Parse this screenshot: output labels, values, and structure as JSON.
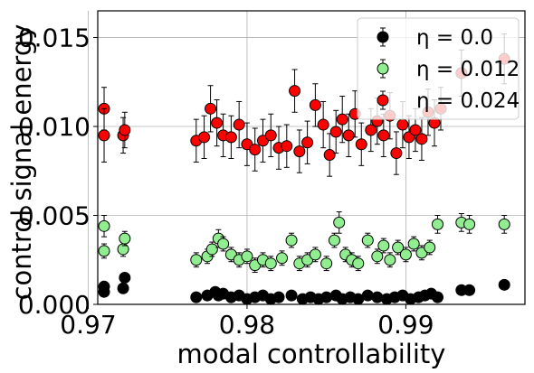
{
  "chart_data": {
    "type": "scatter",
    "title": "",
    "xlabel": "modal controllability",
    "ylabel": "control signal energy",
    "xlim": [
      0.9706,
      0.9975
    ],
    "ylim": [
      0.0,
      0.0165
    ],
    "xticks": [
      "0.97",
      "0.98",
      "0.99"
    ],
    "xtick_values": [
      0.97,
      0.98,
      0.99
    ],
    "yticks": [
      "0.000",
      "0.005",
      "0.010",
      "0.015"
    ],
    "ytick_values": [
      0.0,
      0.005,
      0.01,
      0.015
    ],
    "grid": true,
    "legend_position": "top-right",
    "series": [
      {
        "name": "η = 0.0",
        "color": "#000000",
        "points": [
          [
            0.971,
            0.001,
            0.0001
          ],
          [
            0.971,
            0.0007,
            0.0001
          ],
          [
            0.9723,
            0.0015,
            0.0002
          ],
          [
            0.9722,
            0.0009,
            0.0001
          ],
          [
            0.9768,
            0.0004,
            0.0001
          ],
          [
            0.9775,
            0.0005,
            0.0001
          ],
          [
            0.978,
            0.0007,
            0.0001
          ],
          [
            0.9782,
            0.0005,
            0.0001
          ],
          [
            0.9785,
            0.0006,
            0.0001
          ],
          [
            0.979,
            0.0004,
            0.0001
          ],
          [
            0.9795,
            0.0005,
            0.0001
          ],
          [
            0.98,
            0.0003,
            0.0001
          ],
          [
            0.9805,
            0.0004,
            0.0001
          ],
          [
            0.981,
            0.0005,
            0.0001
          ],
          [
            0.9815,
            0.0003,
            0.0001
          ],
          [
            0.982,
            0.0004,
            0.0001
          ],
          [
            0.9828,
            0.0005,
            0.0001
          ],
          [
            0.9835,
            0.0003,
            0.0001
          ],
          [
            0.984,
            0.0004,
            0.0001
          ],
          [
            0.9845,
            0.0003,
            0.0001
          ],
          [
            0.985,
            0.0004,
            0.0001
          ],
          [
            0.9856,
            0.0005,
            0.0001
          ],
          [
            0.986,
            0.0003,
            0.0001
          ],
          [
            0.9865,
            0.0004,
            0.0001
          ],
          [
            0.987,
            0.0003,
            0.0001
          ],
          [
            0.9876,
            0.0005,
            0.0001
          ],
          [
            0.9882,
            0.0004,
            0.0001
          ],
          [
            0.9888,
            0.0003,
            0.0001
          ],
          [
            0.9893,
            0.0004,
            0.0001
          ],
          [
            0.9898,
            0.0005,
            0.0001
          ],
          [
            0.9903,
            0.0003,
            0.0001
          ],
          [
            0.9908,
            0.0004,
            0.0001
          ],
          [
            0.9912,
            0.0005,
            0.0001
          ],
          [
            0.9916,
            0.0006,
            0.0001
          ],
          [
            0.992,
            0.0004,
            0.0001
          ],
          [
            0.9935,
            0.0008,
            0.0001
          ],
          [
            0.994,
            0.0008,
            0.0001
          ],
          [
            0.9962,
            0.0011,
            0.0001
          ]
        ]
      },
      {
        "name": "η = 0.012",
        "color": "#90ee90",
        "points": [
          [
            0.971,
            0.0044,
            0.0006
          ],
          [
            0.971,
            0.003,
            0.0004
          ],
          [
            0.9722,
            0.0031,
            0.0004
          ],
          [
            0.9723,
            0.0037,
            0.0004
          ],
          [
            0.9768,
            0.0025,
            0.0004
          ],
          [
            0.9775,
            0.0027,
            0.0004
          ],
          [
            0.9778,
            0.0031,
            0.0004
          ],
          [
            0.9782,
            0.0037,
            0.0005
          ],
          [
            0.9785,
            0.0034,
            0.0004
          ],
          [
            0.979,
            0.0028,
            0.0004
          ],
          [
            0.9795,
            0.0025,
            0.0004
          ],
          [
            0.98,
            0.0027,
            0.0004
          ],
          [
            0.9805,
            0.0022,
            0.0004
          ],
          [
            0.981,
            0.0025,
            0.0004
          ],
          [
            0.9815,
            0.0023,
            0.0004
          ],
          [
            0.9822,
            0.0026,
            0.0004
          ],
          [
            0.9828,
            0.0036,
            0.0004
          ],
          [
            0.9833,
            0.0023,
            0.0004
          ],
          [
            0.9838,
            0.0025,
            0.0004
          ],
          [
            0.9843,
            0.0028,
            0.0004
          ],
          [
            0.985,
            0.0023,
            0.0004
          ],
          [
            0.9855,
            0.0036,
            0.0004
          ],
          [
            0.9858,
            0.0046,
            0.0006
          ],
          [
            0.9862,
            0.0028,
            0.0004
          ],
          [
            0.9866,
            0.0025,
            0.0004
          ],
          [
            0.987,
            0.0023,
            0.0004
          ],
          [
            0.9876,
            0.0036,
            0.0004
          ],
          [
            0.9882,
            0.0027,
            0.0004
          ],
          [
            0.9886,
            0.0033,
            0.0004
          ],
          [
            0.989,
            0.0025,
            0.0004
          ],
          [
            0.9895,
            0.0032,
            0.0004
          ],
          [
            0.99,
            0.0028,
            0.0004
          ],
          [
            0.9905,
            0.0034,
            0.0004
          ],
          [
            0.991,
            0.0029,
            0.0004
          ],
          [
            0.9915,
            0.0032,
            0.0004
          ],
          [
            0.992,
            0.0045,
            0.0005
          ],
          [
            0.9935,
            0.0046,
            0.0005
          ],
          [
            0.994,
            0.0045,
            0.0005
          ],
          [
            0.9962,
            0.0045,
            0.0005
          ]
        ]
      },
      {
        "name": "η = 0.024",
        "color": "#ff0000",
        "points": [
          [
            0.971,
            0.011,
            0.0012
          ],
          [
            0.971,
            0.0095,
            0.0015
          ],
          [
            0.9722,
            0.0095,
            0.001
          ],
          [
            0.9723,
            0.0098,
            0.001
          ],
          [
            0.9768,
            0.0092,
            0.0012
          ],
          [
            0.9773,
            0.0094,
            0.0012
          ],
          [
            0.9777,
            0.011,
            0.0013
          ],
          [
            0.9781,
            0.0102,
            0.0013
          ],
          [
            0.9785,
            0.0095,
            0.0012
          ],
          [
            0.979,
            0.0094,
            0.0012
          ],
          [
            0.9795,
            0.0101,
            0.0013
          ],
          [
            0.98,
            0.009,
            0.0012
          ],
          [
            0.9805,
            0.0087,
            0.0012
          ],
          [
            0.981,
            0.0092,
            0.0012
          ],
          [
            0.9815,
            0.0095,
            0.0012
          ],
          [
            0.982,
            0.0088,
            0.0012
          ],
          [
            0.9825,
            0.0089,
            0.0012
          ],
          [
            0.983,
            0.012,
            0.0012
          ],
          [
            0.9833,
            0.0086,
            0.0012
          ],
          [
            0.9838,
            0.0091,
            0.0012
          ],
          [
            0.9843,
            0.0112,
            0.0012
          ],
          [
            0.9848,
            0.0101,
            0.0013
          ],
          [
            0.9852,
            0.0084,
            0.0012
          ],
          [
            0.9856,
            0.0097,
            0.0012
          ],
          [
            0.986,
            0.0104,
            0.0013
          ],
          [
            0.9864,
            0.0095,
            0.0012
          ],
          [
            0.9868,
            0.0107,
            0.0013
          ],
          [
            0.9872,
            0.009,
            0.0012
          ],
          [
            0.9878,
            0.0098,
            0.0012
          ],
          [
            0.9882,
            0.0103,
            0.0013
          ],
          [
            0.9886,
            0.0095,
            0.0012
          ],
          [
            0.989,
            0.0106,
            0.0013
          ],
          [
            0.9894,
            0.0085,
            0.0012
          ],
          [
            0.9898,
            0.0101,
            0.0013
          ],
          [
            0.9902,
            0.0094,
            0.0012
          ],
          [
            0.9906,
            0.0098,
            0.0012
          ],
          [
            0.991,
            0.0093,
            0.0012
          ],
          [
            0.9914,
            0.0108,
            0.0013
          ],
          [
            0.9918,
            0.0102,
            0.0013
          ],
          [
            0.9922,
            0.011,
            0.0012
          ],
          [
            0.9935,
            0.013,
            0.0013
          ],
          [
            0.9962,
            0.0138,
            0.0014
          ]
        ]
      }
    ]
  }
}
